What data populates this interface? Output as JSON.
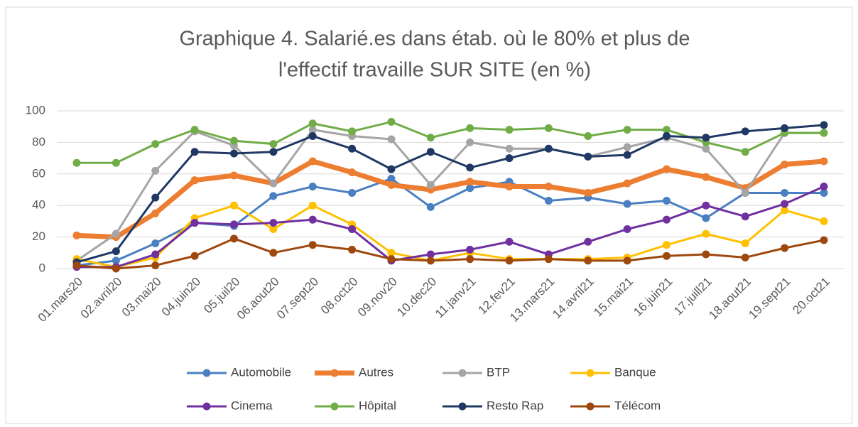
{
  "chart_data": {
    "type": "line",
    "title": [
      "Graphique 4. Salarié.es dans étab. où le 80% et plus de",
      "l'effectif travaille SUR SITE (en %)"
    ],
    "categories": [
      "01.mars20",
      "02.avril20",
      "03.mai20",
      "04.juin20",
      "05.juil20",
      "06.aout20",
      "07.sept20",
      "08.oct20",
      "09.nov20",
      "10.dec20",
      "11.janv21",
      "12.fev21",
      "13.mars21",
      "14.avril21",
      "15.mai21",
      "16.juin21",
      "17.juill21",
      "18.aout21",
      "19.sept21",
      "20.oct21"
    ],
    "series": [
      {
        "name": "Automobile",
        "color": "#4a7fc1",
        "values": [
          2,
          5,
          16,
          29,
          27,
          46,
          52,
          48,
          57,
          39,
          51,
          55,
          43,
          45,
          41,
          43,
          32,
          48,
          48,
          48
        ]
      },
      {
        "name": "Autres",
        "color": "#ed7d31",
        "values": [
          21,
          20,
          35,
          56,
          59,
          54,
          68,
          61,
          53,
          50,
          55,
          52,
          52,
          48,
          54,
          63,
          58,
          51,
          66,
          68
        ]
      },
      {
        "name": "BTP",
        "color": "#a5a5a5",
        "values": [
          5,
          22,
          62,
          87,
          78,
          54,
          88,
          84,
          82,
          53,
          80,
          76,
          76,
          71,
          77,
          83,
          76,
          48,
          86,
          86
        ]
      },
      {
        "name": "Banque",
        "color": "#ffc000",
        "values": [
          6,
          1,
          7,
          32,
          40,
          25,
          40,
          28,
          10,
          5,
          10,
          6,
          6,
          6,
          7,
          15,
          22,
          16,
          37,
          30
        ]
      },
      {
        "name": "Cinema",
        "color": "#7030a0",
        "values": [
          1,
          1,
          9,
          29,
          28,
          29,
          31,
          25,
          5,
          9,
          12,
          17,
          9,
          17,
          25,
          31,
          40,
          33,
          41,
          52
        ]
      },
      {
        "name": "Hôpital",
        "color": "#70ad47",
        "values": [
          67,
          67,
          79,
          88,
          81,
          79,
          92,
          87,
          93,
          83,
          89,
          88,
          89,
          84,
          88,
          88,
          80,
          74,
          86,
          86
        ]
      },
      {
        "name": "Resto Rap",
        "color": "#203864",
        "values": [
          4,
          11,
          45,
          74,
          73,
          74,
          84,
          76,
          63,
          74,
          64,
          70,
          76,
          71,
          72,
          84,
          83,
          87,
          89,
          91
        ]
      },
      {
        "name": "Télécom",
        "color": "#9e480e",
        "values": [
          2,
          0,
          2,
          8,
          19,
          10,
          15,
          12,
          6,
          5,
          6,
          5,
          6,
          5,
          5,
          8,
          9,
          7,
          13,
          18
        ]
      }
    ],
    "ylim": [
      0,
      100
    ],
    "yticks": [
      0,
      20,
      40,
      60,
      80,
      100
    ],
    "grid": true,
    "legend": "bottom"
  }
}
